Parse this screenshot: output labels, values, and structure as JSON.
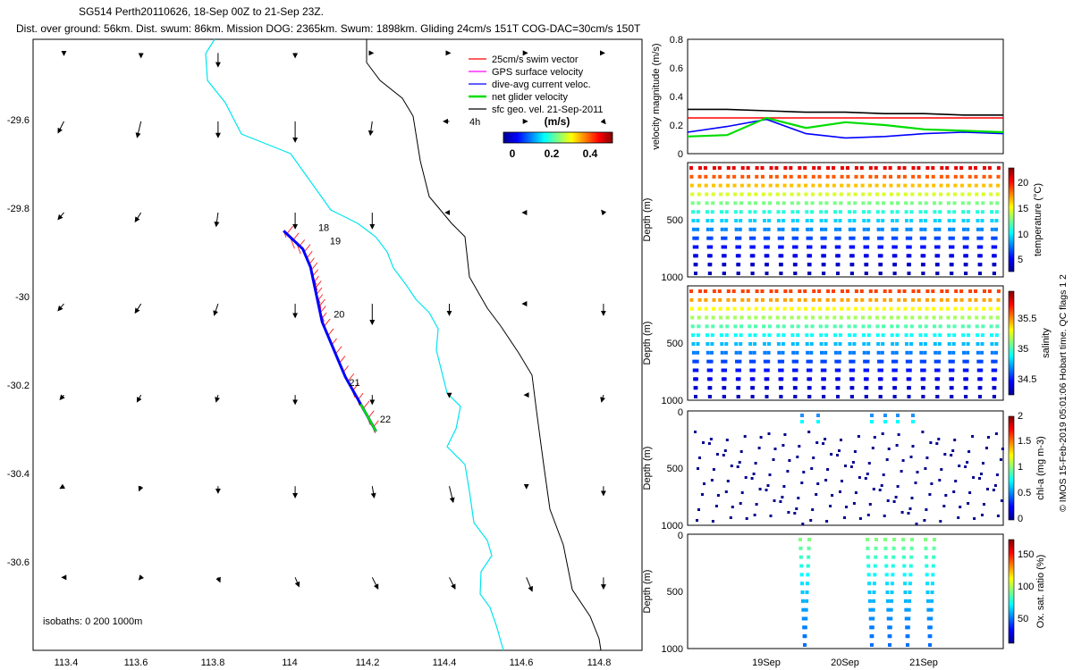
{
  "header": {
    "line1": "SG514 Perth20110626, 18-Sep 00Z to 21-Sep 23Z.",
    "line2": "Dist. over ground: 56km. Dist. swum: 86km. Mission DOG: 2365km. Swum: 1898km. Gliding 24cm/s 151T COG-DAC=30cm/s 150T"
  },
  "map": {
    "xticks": [
      "113.4",
      "113.6",
      "113.8",
      "114",
      "114.2",
      "114.4",
      "114.6",
      "114.8"
    ],
    "yticks": [
      "-29.6",
      "-29.8",
      "-30",
      "-30.2",
      "-30.4",
      "-30.6"
    ],
    "isobath_note": "isobaths: 0   200  1000m",
    "legend": [
      {
        "label": "25cm/s swim vector",
        "color": "#ff0000"
      },
      {
        "label": "GPS surface velocity",
        "color": "#ff00ff"
      },
      {
        "label": "dive-avg current veloc.",
        "color": "#0000ff"
      },
      {
        "label": "net glider velocity",
        "color": "#00dd00"
      },
      {
        "label": "sfc geo. vel. 21-Sep-2011",
        "color": "#000000"
      }
    ],
    "interval_label": "4h",
    "colorbar": {
      "unit": "(m/s)",
      "ticks": [
        "0",
        "0.2",
        "0.4"
      ]
    },
    "day_labels": [
      "18",
      "19",
      "20",
      "21",
      "22"
    ]
  },
  "panels": {
    "velocity": {
      "ylabel": "velocity magnitude (m/s)",
      "yticks": [
        "0",
        "0.2",
        "0.4",
        "0.6",
        "0.8"
      ]
    },
    "temperature": {
      "ylabel": "Depth (m)",
      "cblabel": "temperature (°C)",
      "cbticks": [
        "5",
        "10",
        "15",
        "20"
      ],
      "yticks": [
        "500",
        "1000"
      ]
    },
    "salinity": {
      "ylabel": "Depth (m)",
      "cblabel": "salinity",
      "cbticks": [
        "34.5",
        "35",
        "35.5"
      ],
      "yticks": [
        "500",
        "1000"
      ]
    },
    "chla": {
      "ylabel": "Depth (m)",
      "cblabel": "chl-a (mg m-3)",
      "cbticks": [
        "0",
        "0.5",
        "1",
        "1.5",
        "2"
      ],
      "yticks": [
        "0",
        "500",
        "1000"
      ]
    },
    "oxygen": {
      "ylabel": "Depth (m)",
      "cblabel": "Ox. sat. ratio (%)",
      "cbticks": [
        "50",
        "100",
        "150"
      ],
      "yticks": [
        "0",
        "500",
        "1000"
      ]
    },
    "xticks": [
      "19Sep",
      "20Sep",
      "21Sep"
    ]
  },
  "side_note": "© IMOS 15-Feb-2019 05:01:06 Hobart time. QC flags 1  2",
  "chart_data": [
    {
      "type": "scatter",
      "title": "SG514 Perth20110626, 18-Sep 00Z to 21-Sep 23Z.",
      "xlim": [
        113.32,
        114.9
      ],
      "ylim": [
        -30.76,
        -29.42
      ],
      "series": [
        {
          "name": "dive-avg current veloc.",
          "x": [
            113.97,
            114.02,
            114.04,
            114.05,
            114.06,
            114.07,
            114.1,
            114.13,
            114.17,
            114.21
          ],
          "y": [
            -29.84,
            -29.88,
            -29.92,
            -29.96,
            -30.0,
            -30.04,
            -30.1,
            -30.16,
            -30.22,
            -30.28
          ]
        }
      ],
      "day_label_positions": {
        "x": [
          114.06,
          114.09,
          114.1,
          114.14,
          114.22
        ],
        "y": [
          -29.84,
          -29.87,
          -30.03,
          -30.18,
          -30.26
        ]
      },
      "geostrophic_arrows": {
        "lon": [
          113.4,
          113.6,
          113.8,
          114.0,
          114.2,
          114.4,
          114.6,
          114.8
        ],
        "lat": [
          -29.45,
          -29.6,
          -29.8,
          -30.0,
          -30.2,
          -30.4,
          -30.6
        ],
        "dlon": [
          [
            0.0,
            0.0,
            0.0,
            0.0,
            0.0,
            0.0,
            0.0,
            0.0
          ],
          [
            -0.015,
            -0.01,
            0.0,
            0.0,
            -0.005,
            -0.015,
            0.0,
            0.005
          ],
          [
            -0.015,
            -0.015,
            -0.005,
            0.0,
            0.0,
            -0.01,
            -0.01,
            -0.005
          ],
          [
            -0.015,
            -0.015,
            -0.01,
            0.0,
            0.0,
            0.0,
            -0.01,
            0.0
          ],
          [
            -0.01,
            -0.01,
            -0.005,
            0.0,
            0.0,
            0.0,
            -0.005,
            -0.005
          ],
          [
            -0.01,
            -0.005,
            0.0,
            0.0,
            0.005,
            0.01,
            0.0,
            0.0
          ],
          [
            -0.005,
            -0.005,
            0.005,
            0.01,
            0.015,
            0.015,
            0.015,
            0.0
          ]
        ],
        "dlat": [
          [
            -0.005,
            -0.01,
            -0.03,
            -0.01,
            0.0,
            0.0,
            0.0,
            0.0
          ],
          [
            -0.025,
            -0.035,
            -0.035,
            -0.045,
            -0.03,
            0.0,
            0.0,
            -0.005
          ],
          [
            -0.015,
            -0.02,
            -0.03,
            -0.035,
            -0.035,
            0.0,
            0.0,
            0.005
          ],
          [
            -0.015,
            -0.02,
            -0.025,
            -0.03,
            -0.045,
            -0.025,
            0.0,
            -0.025
          ],
          [
            -0.01,
            -0.015,
            -0.015,
            -0.02,
            -0.02,
            -0.005,
            0.0,
            -0.015
          ],
          [
            -0.005,
            -0.01,
            -0.015,
            -0.025,
            -0.025,
            -0.035,
            -0.005,
            -0.02
          ],
          [
            0.0,
            -0.005,
            -0.01,
            -0.02,
            -0.025,
            -0.025,
            -0.03,
            -0.025
          ]
        ]
      }
    },
    {
      "type": "line",
      "title": "",
      "xlabel": "",
      "ylabel": "velocity magnitude (m/s)",
      "xlim": [
        "18-Sep",
        "22-Sep"
      ],
      "ylim": [
        0,
        0.8
      ],
      "x": [
        "18-Sep 00Z",
        "18-Sep 12Z",
        "19-Sep 00Z",
        "19-Sep 12Z",
        "20-Sep 00Z",
        "20-Sep 12Z",
        "21-Sep 00Z",
        "21-Sep 12Z",
        "21-Sep 23Z"
      ],
      "series": [
        {
          "color": "#000000",
          "values": [
            0.31,
            0.31,
            0.3,
            0.29,
            0.29,
            0.28,
            0.28,
            0.27,
            0.27
          ]
        },
        {
          "color": "#ff0000",
          "values": [
            0.25,
            0.25,
            0.25,
            0.25,
            0.25,
            0.25,
            0.25,
            0.25,
            0.25
          ]
        },
        {
          "color": "#0000ff",
          "values": [
            0.15,
            0.19,
            0.24,
            0.14,
            0.11,
            0.12,
            0.14,
            0.15,
            0.14
          ]
        },
        {
          "color": "#00dd00",
          "values": [
            0.12,
            0.13,
            0.25,
            0.18,
            0.22,
            0.2,
            0.17,
            0.16,
            0.15
          ]
        }
      ]
    },
    {
      "type": "scatter",
      "ylabel": "Depth (m)",
      "colorbar_label": "temperature (°C)",
      "ylim": [
        0,
        1000
      ],
      "clim": [
        3,
        23
      ],
      "dives": 22,
      "surface_value": 21,
      "bottom_value": 4
    },
    {
      "type": "scatter",
      "ylabel": "Depth (m)",
      "colorbar_label": "salinity",
      "ylim": [
        0,
        1000
      ],
      "clim": [
        34.3,
        35.9
      ],
      "dives": 22,
      "surface_value": 35.6,
      "bottom_value": 34.4
    },
    {
      "type": "scatter",
      "ylabel": "Depth (m)",
      "colorbar_label": "chl-a (mg m-3)",
      "ylim": [
        0,
        1000
      ],
      "clim": [
        0,
        2
      ],
      "dives": 22,
      "typical_value": 0.05
    },
    {
      "type": "scatter",
      "ylabel": "Depth (m)",
      "colorbar_label": "Ox. sat. ratio (%)",
      "ylim": [
        0,
        1000
      ],
      "clim": [
        25,
        175
      ],
      "dives": 5,
      "surface_value": 100,
      "bottom_value": 60
    }
  ]
}
